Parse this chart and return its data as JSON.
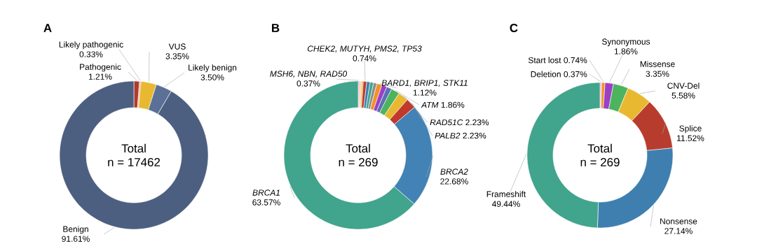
{
  "chart_data": [
    {
      "type": "donut",
      "title": "A",
      "annotations": [
        "Total",
        "n = 17462"
      ],
      "categories": [
        "Pathogenic",
        "Likely pathogenic",
        "VUS",
        "Likely benign",
        "Benign"
      ],
      "values": [
        1.21,
        0.33,
        3.35,
        3.5,
        91.61
      ],
      "value_labels": [
        "1.21%",
        "0.33%",
        "3.35%",
        "3.50%",
        "91.61%"
      ],
      "colors": [
        "#b03a2e",
        "#f2a7a0",
        "#e8b830",
        "#5b7096",
        "#4d5f80"
      ]
    },
    {
      "type": "donut",
      "title": "B",
      "annotations": [
        "Total",
        "n = 269"
      ],
      "categories": [
        "MSH6, NBN, RAD50",
        null,
        null,
        "CHEK2, MUTYH, PMS2, TP53",
        null,
        null,
        null,
        "BARD1, BRIP1, STK11",
        null,
        null,
        "ATM",
        "RAD51C",
        "PALB2",
        "BRCA2",
        "BRCA1"
      ],
      "values": [
        0.37,
        0.37,
        0.37,
        0.74,
        0.74,
        0.74,
        0.74,
        1.12,
        1.12,
        1.12,
        1.86,
        2.23,
        2.23,
        22.68,
        63.57
      ],
      "value_labels": [
        "0.37%",
        null,
        null,
        "0.74%",
        null,
        null,
        null,
        "1.12%",
        null,
        null,
        "1.86%",
        "2.23%",
        "2.23%",
        "22.68%",
        "63.57%"
      ],
      "colors": [
        "#f2a5c4",
        "#f6c9a8",
        "#e8b830",
        "#c0392b",
        "#3f7fb0",
        "#41a48c",
        "#8c8c8c",
        "#f0922b",
        "#9b3fc4",
        "#5b6fb5",
        "#4cb35e",
        "#e8b830",
        "#c0392b",
        "#4282b4",
        "#41a48c"
      ]
    },
    {
      "type": "donut",
      "title": "C",
      "annotations": [
        "Total",
        "n = 269"
      ],
      "categories": [
        "Deletion",
        "Start lost",
        "Synonymous",
        "Missense",
        "CNV-Del",
        "Splice",
        "Nonsense",
        "Frameshift"
      ],
      "values": [
        0.37,
        0.74,
        1.86,
        3.35,
        5.58,
        11.52,
        27.14,
        49.44
      ],
      "value_labels": [
        "0.37%",
        "0.74%",
        "1.86%",
        "3.35%",
        "5.58%",
        "11.52%",
        "27.14%",
        "49.44%"
      ],
      "colors": [
        "#f2a5c4",
        "#f0922b",
        "#9b3fc4",
        "#4cb35e",
        "#e8b830",
        "#b83c2e",
        "#3f7fb0",
        "#41a48c"
      ]
    }
  ]
}
